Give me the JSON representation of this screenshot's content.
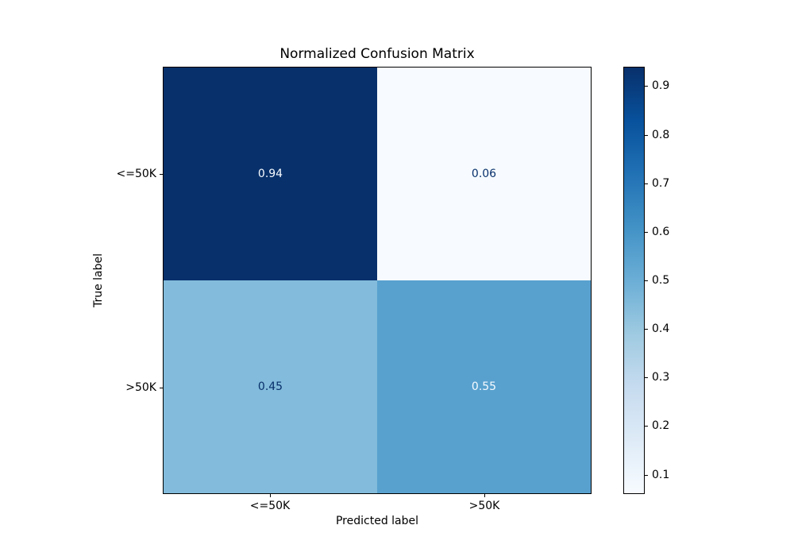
{
  "figure": {
    "background": "#ffffff"
  },
  "chart_data": {
    "type": "heatmap",
    "title": "Normalized Confusion Matrix",
    "xlabel": "Predicted label",
    "ylabel": "True label",
    "x_tick_labels": [
      "<=50K",
      ">50K"
    ],
    "y_tick_labels": [
      "<=50K",
      ">50K"
    ],
    "matrix": [
      [
        0.94,
        0.06
      ],
      [
        0.45,
        0.55
      ]
    ],
    "cell_labels": [
      [
        "0.94",
        "0.06"
      ],
      [
        "0.45",
        "0.55"
      ]
    ],
    "cell_colors": [
      [
        "#08306b",
        "#f7fbff"
      ],
      [
        "#82bbdb",
        "#58a1cf"
      ]
    ],
    "cell_text_colors": [
      [
        "#f7fbff",
        "#08306b"
      ],
      [
        "#08306b",
        "#f7fbff"
      ]
    ],
    "colormap": "Blues",
    "vmin": 0.06,
    "vmax": 0.94,
    "grid": false,
    "legend_position": "none",
    "colorbar": {
      "tick_labels": [
        "0.9",
        "0.8",
        "0.7",
        "0.6",
        "0.5",
        "0.4",
        "0.3",
        "0.2",
        "0.1"
      ],
      "tick_values": [
        0.9,
        0.8,
        0.7,
        0.6,
        0.5,
        0.4,
        0.3,
        0.2,
        0.1
      ],
      "gradient_stops": [
        "#f7fbff",
        "#deebf7",
        "#c6dbef",
        "#9ecae1",
        "#6baed6",
        "#4292c6",
        "#2171b5",
        "#08519c",
        "#08306b"
      ]
    }
  }
}
